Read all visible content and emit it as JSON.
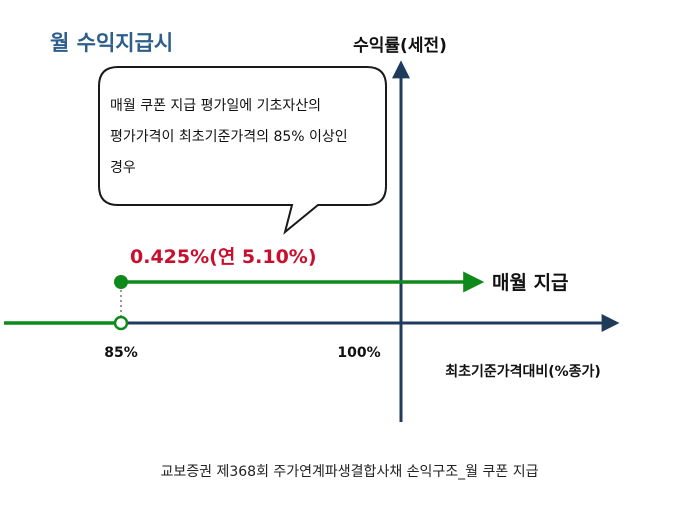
{
  "title": "월 수익지급시",
  "y_axis_label": "수익률(세전)",
  "x_axis_label": "최초기준가격대비(%종가)",
  "callout_lines": [
    "매월 쿠폰 지급 평가일에 기초자산의",
    "평가가격이 최초기준가격의 85% 이상인",
    "경우"
  ],
  "coupon_label": "0.425%(연 5.10%)",
  "payout_label": "매월 지급",
  "tick_85": "85%",
  "tick_100": "100%",
  "caption": "교보증권 제368회 주가연계파생결합사채 손익구조_월 쿠폰 지급",
  "colors": {
    "title": "#2e5f8a",
    "axis": "#1f3b5c",
    "green": "#0e8a1a",
    "red": "#c8102e",
    "callout_border": "#1a1a1a",
    "dotted": "#999999"
  }
}
